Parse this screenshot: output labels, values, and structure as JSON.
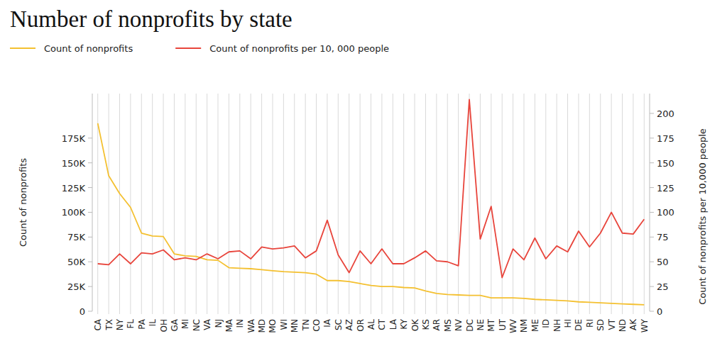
{
  "chart_data": {
    "type": "line",
    "title": "Number of nonprofits by state",
    "y_label": "Count of nonprofits",
    "y2_label": "Count of nonprofits per 10,000 people",
    "categories": [
      "CA",
      "TX",
      "NY",
      "FL",
      "PA",
      "IL",
      "OH",
      "GA",
      "MI",
      "NC",
      "VA",
      "NJ",
      "MA",
      "IN",
      "WA",
      "MD",
      "MO",
      "WI",
      "MN",
      "TN",
      "CO",
      "IA",
      "SC",
      "AZ",
      "OR",
      "AL",
      "CT",
      "LA",
      "KY",
      "OK",
      "KS",
      "AR",
      "MS",
      "NV",
      "DC",
      "NE",
      "MT",
      "UT",
      "WV",
      "NM",
      "ME",
      "ID",
      "NH",
      "HI",
      "DE",
      "RI",
      "SD",
      "VT",
      "ND",
      "AK",
      "WY"
    ],
    "series": [
      {
        "name": "Count of nonprofits",
        "color": "#f4c030",
        "axis": "y",
        "values": [
          190000,
          137000,
          119000,
          105000,
          79000,
          76000,
          75500,
          58000,
          56000,
          55500,
          52000,
          51500,
          44000,
          43500,
          43000,
          42000,
          41000,
          40000,
          39500,
          39000,
          37500,
          31000,
          31000,
          30000,
          28000,
          26000,
          25000,
          25000,
          24000,
          23500,
          20500,
          18000,
          17000,
          16500,
          16000,
          16000,
          13500,
          13500,
          13500,
          13000,
          12000,
          11500,
          11000,
          10500,
          9500,
          9000,
          8500,
          8000,
          7500,
          7000,
          6500
        ]
      },
      {
        "name": "Count of nonprofits per 10, 000 people",
        "color": "#e8453c",
        "axis": "y2",
        "values": [
          48,
          47,
          58,
          48,
          59,
          58,
          62,
          52,
          54,
          52,
          58,
          53,
          60,
          61,
          53,
          65,
          63,
          64,
          66,
          54,
          61,
          92,
          57,
          39,
          61,
          48,
          63,
          48,
          48,
          54,
          61,
          51,
          50,
          46,
          214,
          73,
          106,
          34,
          63,
          52,
          74,
          53,
          66,
          60,
          81,
          65,
          79,
          100,
          79,
          78,
          93
        ]
      }
    ],
    "ylim": [
      0,
      220000
    ],
    "yticks": [
      0,
      {
        "value": 25000,
        "label": "25K"
      },
      {
        "value": 50000,
        "label": "50K"
      },
      {
        "value": 75000,
        "label": "75K"
      },
      {
        "value": 100000,
        "label": "100K"
      },
      {
        "value": 125000,
        "label": "125K"
      },
      {
        "value": 150000,
        "label": "150K"
      },
      {
        "value": 175000,
        "label": "175K"
      }
    ],
    "y2lim": [
      0,
      220
    ],
    "y2ticks": [
      0,
      25,
      50,
      75,
      100,
      125,
      150,
      175,
      200
    ],
    "grid": true,
    "legend": "top-left"
  }
}
